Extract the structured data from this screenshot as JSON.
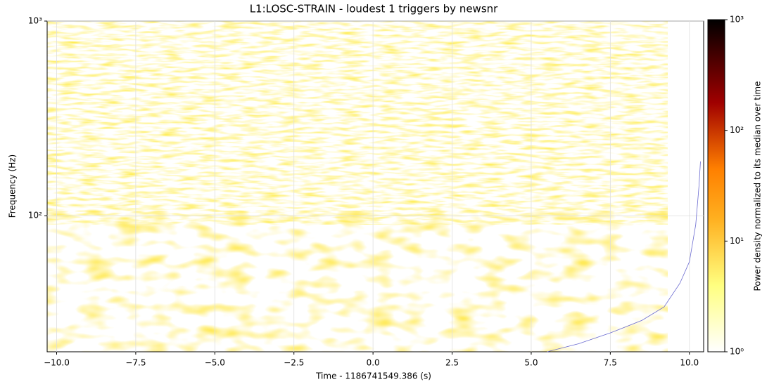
{
  "chart_data": {
    "type": "spectrogram",
    "title": "L1:LOSC-STRAIN - loudest 1 triggers by newsnr",
    "x_label": "Time - 1186741549.386 (s)",
    "y_label": "Frequency (Hz)",
    "colorbar_label": "Power density normalized to its median over time",
    "xlim": [
      -10.3,
      10.45
    ],
    "ylim": [
      20,
      1000
    ],
    "y_scale": "log",
    "xticks": [
      {
        "value": -10,
        "label": "−10.0"
      },
      {
        "value": -7.5,
        "label": "−7.5"
      },
      {
        "value": -5,
        "label": "−5.0"
      },
      {
        "value": -2.5,
        "label": "−2.5"
      },
      {
        "value": 0,
        "label": "0.0"
      },
      {
        "value": 2.5,
        "label": "2.5"
      },
      {
        "value": 5,
        "label": "5.0"
      },
      {
        "value": 7.5,
        "label": "7.5"
      },
      {
        "value": 10,
        "label": "10.0"
      }
    ],
    "yticks": [
      {
        "value": 100,
        "label": "10²"
      },
      {
        "value": 1000,
        "label": "10³"
      }
    ],
    "clim": [
      1,
      1000
    ],
    "cticks": [
      {
        "value": 1,
        "label": "10⁰"
      },
      {
        "value": 10,
        "label": "10¹"
      },
      {
        "value": 100,
        "label": "10²"
      },
      {
        "value": 1000,
        "label": "10³"
      }
    ],
    "grid": true,
    "series": [
      {
        "color": "#6a6ad0",
        "x": [
          5.5,
          6.5,
          7.5,
          8.5,
          9.2,
          9.7,
          10.0,
          10.2,
          10.3,
          10.35
        ],
        "values": [
          20,
          22,
          25,
          29,
          34,
          45,
          58,
          90,
          140,
          190
        ]
      }
    ]
  }
}
